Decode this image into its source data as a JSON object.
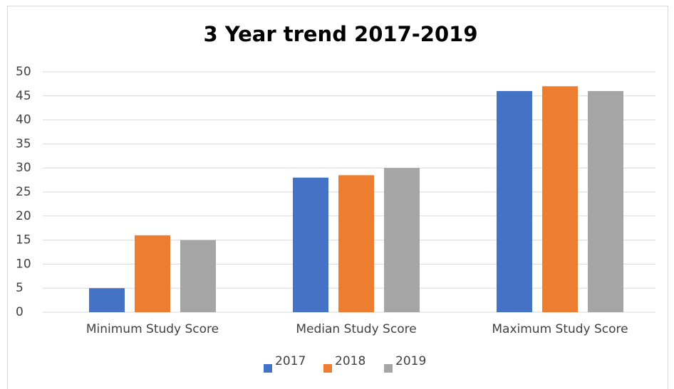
{
  "chart_data": {
    "type": "bar",
    "title": "3 Year trend 2017-2019",
    "categories": [
      "Minimum Study Score",
      "Median Study Score",
      "Maximum Study Score"
    ],
    "series": [
      {
        "name": "2017",
        "color": "#4472c4",
        "values": [
          5,
          28,
          46
        ]
      },
      {
        "name": "2018",
        "color": "#ed7d31",
        "values": [
          16,
          28.5,
          47
        ]
      },
      {
        "name": "2019",
        "color": "#a5a5a5",
        "values": [
          15,
          30,
          46
        ]
      }
    ],
    "ylim": [
      0,
      50
    ],
    "yticks": [
      0,
      5,
      10,
      15,
      20,
      25,
      30,
      35,
      40,
      45,
      50
    ],
    "grid": true,
    "legend": "bottom"
  }
}
